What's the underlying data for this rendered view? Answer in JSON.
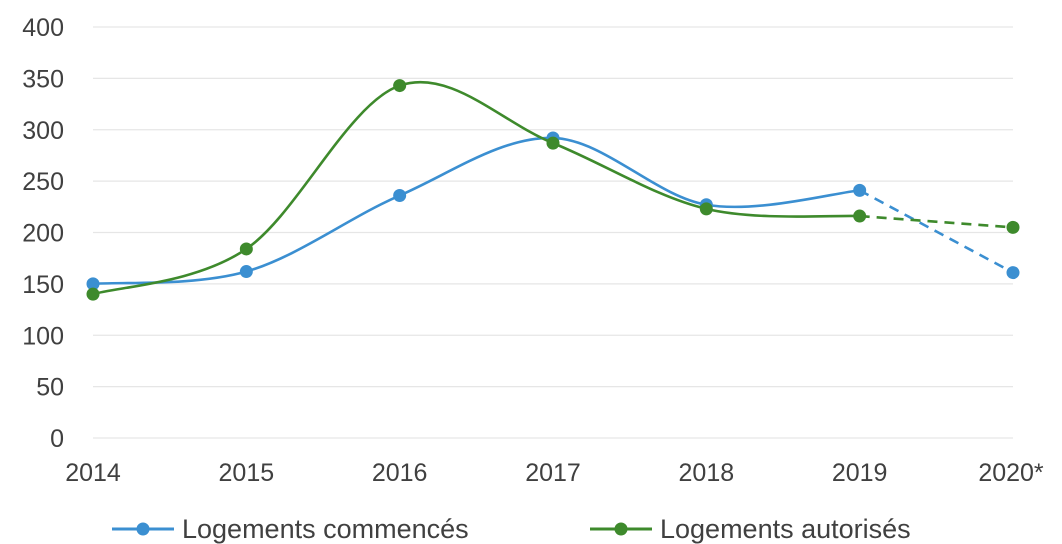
{
  "chart_data": {
    "type": "line",
    "categories": [
      "2014",
      "2015",
      "2016",
      "2017",
      "2018",
      "2019",
      "2020*"
    ],
    "ylim": [
      0,
      400
    ],
    "yticks": [
      0,
      50,
      100,
      150,
      200,
      250,
      300,
      350,
      400
    ],
    "grid": true,
    "smooth": true,
    "legend_position": "bottom",
    "projected_from": "2019",
    "series": [
      {
        "name": "Logements commencés",
        "color": "#3b8fd1",
        "values": [
          150,
          162,
          236,
          292,
          227,
          241,
          161
        ]
      },
      {
        "name": "Logements autorisés",
        "color": "#3e8a2c",
        "values": [
          140,
          184,
          343,
          287,
          223,
          216,
          205
        ]
      }
    ]
  }
}
